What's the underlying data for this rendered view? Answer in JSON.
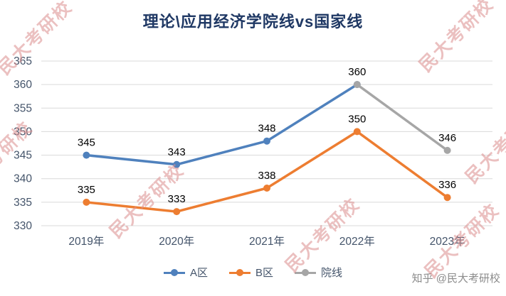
{
  "chart_data": {
    "type": "line",
    "title": "理论\\应用经济学院线vs国家线",
    "categories": [
      "2019年",
      "2020年",
      "2021年",
      "2022年",
      "2023年"
    ],
    "series": [
      {
        "name": "A区",
        "color": "#4F81BD",
        "values": [
          345,
          343,
          348,
          360,
          null
        ],
        "data_labels": [
          345,
          343,
          348,
          360,
          null
        ]
      },
      {
        "name": "B区",
        "color": "#ED7D31",
        "values": [
          335,
          333,
          338,
          350,
          336
        ],
        "data_labels": [
          335,
          333,
          338,
          350,
          336
        ]
      },
      {
        "name": "院线",
        "color": "#A6A6A6",
        "values": [
          null,
          null,
          null,
          360,
          346
        ],
        "data_labels": [
          null,
          null,
          null,
          null,
          346
        ]
      }
    ],
    "xlabel": "",
    "ylabel": "",
    "ylim": [
      330,
      365
    ],
    "ytick_step": 5,
    "grid": true,
    "legend_position": "bottom"
  },
  "watermark": {
    "text": "民大考研校"
  },
  "attribution": {
    "text": "知乎 @民大考研校"
  },
  "colors": {
    "title": "#1F3864",
    "axis_labels": "#44546A",
    "gridline": "#D9D9D9",
    "data_label": "#000000",
    "watermark": "#DC8E8E",
    "series_a": "#4F81BD",
    "series_b": "#ED7D31",
    "series_yuanxian": "#A6A6A6"
  }
}
